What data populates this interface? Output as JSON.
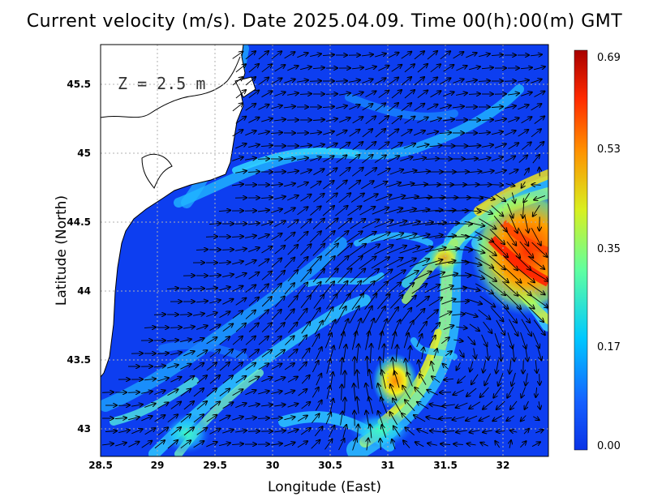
{
  "title": "Current velocity (m/s). Date 2025.04.09. Time 00(h):00(m) GMT",
  "depth_label": "Z = 2.5 m",
  "xlabel": "Longitude (East)",
  "ylabel": "Latitude (North)",
  "x_ticks": [
    "28.5",
    "29",
    "29.5",
    "30",
    "30.5",
    "31",
    "31.5",
    "32"
  ],
  "y_ticks": [
    "43",
    "43.5",
    "44",
    "44.5",
    "45",
    "45.5"
  ],
  "colorbar": {
    "ticks": [
      "0.69",
      "0.53",
      "0.35",
      "0.17",
      "0.00"
    ],
    "min": 0.0,
    "max": 0.69,
    "colors": [
      "#0a33e6",
      "#1560ff",
      "#00c8ff",
      "#60ffa0",
      "#d8f020",
      "#ff9000",
      "#ff2a00",
      "#a80000"
    ]
  },
  "chart_data": {
    "type": "heatmap",
    "title": "Current velocity (m/s). Date 2025.04.09. Time 00(h):00(m) GMT",
    "xlabel": "Longitude (East)",
    "ylabel": "Latitude (North)",
    "xlim": [
      28.5,
      32.4
    ],
    "ylim": [
      42.8,
      45.8
    ],
    "colorbar_range": [
      0.0,
      0.69
    ],
    "grid": true,
    "vector_field": true
  }
}
